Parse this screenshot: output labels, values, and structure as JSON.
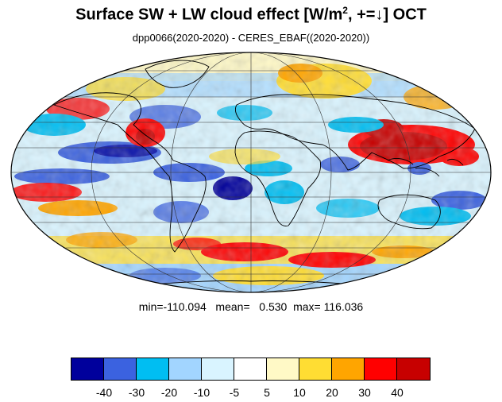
{
  "title": {
    "prefix": "Surface SW + LW cloud effect [W/m",
    "sup": "2",
    "suffix": ", +=↓]  OCT"
  },
  "subtitle": "dpp0066(2020-2020) - CERES_EBAF((2020-2020))",
  "stats": {
    "text": "min=-110.094   mean=   0.530  max= 116.036",
    "min": -110.094,
    "mean": 0.53,
    "max": 116.036
  },
  "colorbar": {
    "colors": [
      "#00009c",
      "#3b62e0",
      "#00bef2",
      "#a2d5ff",
      "#d9f4ff",
      "#ffffff",
      "#fff9c6",
      "#ffdd33",
      "#ffa500",
      "#ff0000",
      "#c70000"
    ],
    "tick_labels": [
      "-40",
      "-30",
      "-20",
      "-10",
      "-5",
      "5",
      "10",
      "20",
      "30",
      "40"
    ]
  },
  "map": {
    "projection": "Mollweide",
    "ocean_background": "#ffffff",
    "land_outline": "#000000",
    "gridlines": true
  }
}
